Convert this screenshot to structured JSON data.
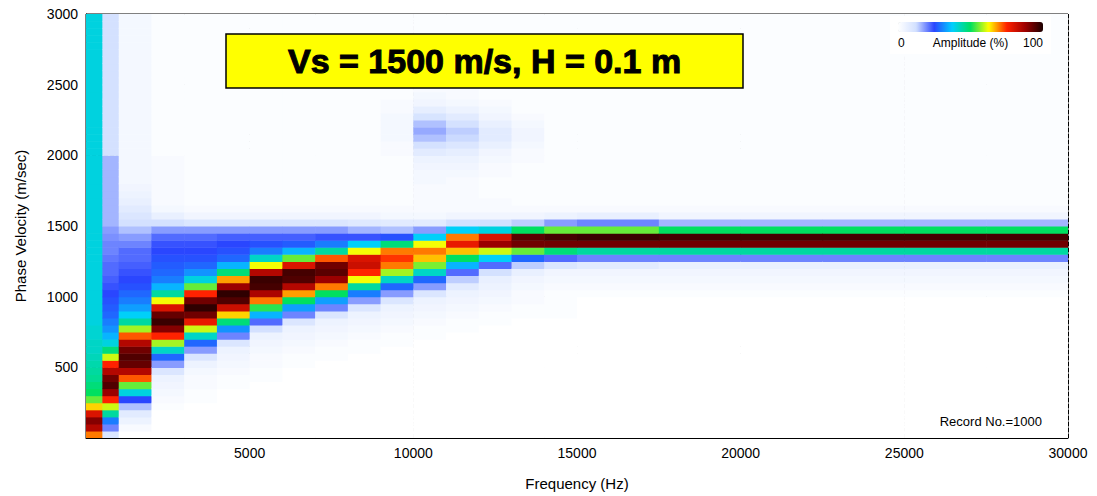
{
  "chart_data": {
    "type": "heatmap",
    "title": "Vs = 1500 m/s, H = 0.1 m",
    "x_label": "Frequency (Hz)",
    "y_label": "Phase Velocity (m/sec)",
    "xlim": [
      0,
      30000
    ],
    "ylim": [
      0,
      3000
    ],
    "xticks": [
      5000,
      10000,
      15000,
      20000,
      25000,
      30000
    ],
    "yticks": [
      500,
      1000,
      1500,
      2000,
      2500,
      3000
    ],
    "grid": true,
    "annotations": [
      "Record No.=1000"
    ],
    "colorbar": {
      "label": "Amplitude (%)",
      "range": [
        0,
        100
      ],
      "ticks": [
        0,
        100
      ]
    },
    "cells": {
      "x_bins": [
        0,
        500,
        1000,
        2000,
        3000,
        4000,
        5000,
        6000,
        7000,
        8000,
        9000,
        10000,
        11000,
        12000,
        13000,
        14000,
        15000,
        17500,
        20000,
        22500,
        25000,
        27500,
        30000
      ],
      "y_bins": [
        0,
        50,
        100,
        150,
        200,
        250,
        300,
        350,
        400,
        450,
        500,
        550,
        600,
        650,
        700,
        750,
        800,
        850,
        900,
        950,
        1000,
        1050,
        1100,
        1150,
        1200,
        1250,
        1300,
        1350,
        1400,
        1450,
        1500,
        1550,
        1600,
        1650,
        1700,
        1750,
        1800,
        1850,
        1900,
        1950,
        2000,
        2050,
        2100,
        2150,
        2200,
        2250,
        2300,
        2350,
        2400,
        2450,
        2500,
        2550,
        2600,
        2650,
        2700,
        2750,
        2800,
        2850,
        2900,
        2950,
        3000
      ],
      "values": [
        [
          70,
          85,
          90,
          80,
          65,
          55,
          50,
          48,
          46,
          45,
          44,
          43,
          42,
          42,
          41,
          41,
          40,
          40,
          40,
          40,
          40,
          40,
          40,
          40,
          40,
          40,
          40,
          40,
          40,
          40,
          40,
          40,
          40,
          40,
          40,
          40,
          40,
          40,
          40,
          40,
          40,
          40,
          40,
          40,
          40,
          40,
          40,
          40,
          40,
          40,
          40,
          40,
          40,
          40,
          40,
          40,
          40,
          40,
          40,
          40
        ],
        [
          10,
          20,
          30,
          45,
          60,
          75,
          88,
          95,
          92,
          85,
          75,
          60,
          48,
          40,
          35,
          32,
          30,
          28,
          27,
          26,
          25,
          24,
          23,
          22,
          22,
          21,
          20,
          20,
          19,
          18,
          16,
          16,
          16,
          16,
          16,
          16,
          16,
          16,
          16,
          16,
          12,
          12,
          12,
          12,
          12,
          12,
          12,
          12,
          12,
          12,
          12,
          12,
          12,
          12,
          12,
          12,
          12,
          12,
          12,
          12
        ],
        [
          0,
          2,
          5,
          8,
          15,
          25,
          40,
          55,
          72,
          85,
          93,
          95,
          92,
          85,
          72,
          58,
          45,
          38,
          33,
          30,
          28,
          26,
          25,
          24,
          23,
          22,
          22,
          20,
          18,
          15,
          12,
          10,
          8,
          6,
          5,
          4,
          3,
          3,
          3,
          3,
          3,
          3,
          3,
          3,
          3,
          3,
          3,
          3,
          3,
          3,
          3,
          3,
          3,
          3,
          3,
          3,
          3,
          3,
          3,
          3
        ],
        [
          0,
          0,
          0,
          0,
          1,
          2,
          3,
          4,
          5,
          10,
          18,
          28,
          42,
          58,
          75,
          90,
          97,
          93,
          80,
          62,
          45,
          35,
          30,
          28,
          27,
          26,
          25,
          24,
          22,
          18,
          12,
          6,
          3,
          2,
          2,
          2,
          2,
          2,
          2,
          2,
          1,
          1,
          1,
          1,
          1,
          1,
          1,
          1,
          1,
          1,
          1,
          1,
          1,
          1,
          1,
          1,
          1,
          1,
          1,
          1
        ],
        [
          0,
          0,
          0,
          0,
          0,
          1,
          1,
          2,
          2,
          3,
          5,
          10,
          18,
          28,
          42,
          60,
          78,
          92,
          98,
          92,
          75,
          55,
          40,
          32,
          28,
          26,
          25,
          24,
          22,
          18,
          10,
          4,
          2,
          1,
          1,
          1,
          1,
          1,
          1,
          1,
          1,
          1,
          1,
          1,
          1,
          1,
          1,
          1,
          1,
          1,
          1,
          1,
          1,
          1,
          1,
          1,
          1,
          1,
          1,
          1
        ],
        [
          0,
          0,
          0,
          0,
          0,
          0,
          0,
          1,
          1,
          2,
          3,
          4,
          5,
          10,
          20,
          32,
          48,
          65,
          82,
          95,
          98,
          88,
          68,
          48,
          35,
          28,
          26,
          25,
          23,
          18,
          10,
          4,
          2,
          1,
          1,
          1,
          1,
          1,
          1,
          1,
          1,
          1,
          1,
          1,
          1,
          1,
          1,
          1,
          1,
          1,
          1,
          1,
          1,
          1,
          1,
          1,
          1,
          1,
          1,
          1
        ],
        [
          0,
          0,
          0,
          0,
          0,
          0,
          0,
          0,
          1,
          1,
          2,
          2,
          3,
          4,
          5,
          12,
          22,
          35,
          52,
          70,
          86,
          96,
          97,
          85,
          62,
          42,
          30,
          26,
          23,
          18,
          10,
          4,
          2,
          1,
          1,
          1,
          1,
          1,
          1,
          1,
          1,
          1,
          1,
          1,
          1,
          1,
          1,
          1,
          1,
          1,
          1,
          1,
          1,
          1,
          1,
          1,
          1,
          1,
          1,
          1
        ],
        [
          0,
          0,
          0,
          0,
          0,
          0,
          0,
          0,
          0,
          0,
          1,
          1,
          2,
          3,
          4,
          5,
          10,
          20,
          33,
          50,
          68,
          85,
          95,
          96,
          80,
          55,
          35,
          27,
          23,
          18,
          10,
          4,
          2,
          1,
          1,
          1,
          1,
          1,
          1,
          1,
          1,
          1,
          1,
          1,
          1,
          1,
          1,
          1,
          1,
          1,
          1,
          1,
          1,
          1,
          1,
          1,
          1,
          1,
          1,
          1
        ],
        [
          0,
          0,
          0,
          0,
          0,
          0,
          0,
          0,
          0,
          0,
          0,
          1,
          1,
          2,
          3,
          4,
          5,
          10,
          20,
          33,
          50,
          70,
          88,
          94,
          92,
          72,
          45,
          30,
          24,
          18,
          10,
          4,
          2,
          1,
          1,
          1,
          1,
          1,
          1,
          1,
          1,
          1,
          1,
          1,
          1,
          1,
          1,
          1,
          1,
          1,
          1,
          1,
          1,
          1,
          1,
          1,
          1,
          1,
          1,
          1
        ],
        [
          0,
          0,
          0,
          0,
          0,
          0,
          0,
          0,
          0,
          0,
          0,
          0,
          1,
          1,
          2,
          3,
          4,
          5,
          10,
          18,
          30,
          45,
          62,
          75,
          82,
          80,
          62,
          38,
          24,
          16,
          9,
          4,
          2,
          1,
          1,
          1,
          1,
          1,
          1,
          1,
          1,
          1,
          1,
          1,
          1,
          1,
          1,
          1,
          1,
          1,
          1,
          1,
          1,
          1,
          1,
          1,
          1,
          1,
          1,
          1
        ],
        [
          0,
          0,
          0,
          0,
          0,
          0,
          0,
          0,
          0,
          0,
          0,
          0,
          0,
          1,
          1,
          2,
          3,
          4,
          5,
          10,
          18,
          28,
          42,
          58,
          70,
          74,
          70,
          48,
          26,
          15,
          8,
          3,
          2,
          1,
          1,
          1,
          1,
          1,
          1,
          1,
          2,
          2,
          3,
          3,
          3,
          3,
          2,
          2,
          1,
          1,
          1,
          1,
          1,
          1,
          1,
          1,
          1,
          1,
          1,
          1
        ],
        [
          0,
          0,
          0,
          0,
          0,
          0,
          0,
          0,
          0,
          0,
          0,
          0,
          0,
          0,
          1,
          1,
          2,
          3,
          4,
          5,
          10,
          18,
          28,
          42,
          56,
          66,
          70,
          62,
          38,
          18,
          8,
          3,
          2,
          2,
          2,
          2,
          3,
          3,
          4,
          5,
          8,
          12,
          15,
          17,
          15,
          11,
          7,
          4,
          3,
          2,
          2,
          1,
          1,
          1,
          1,
          1,
          1,
          1,
          1,
          1
        ],
        [
          0,
          0,
          0,
          0,
          0,
          0,
          0,
          0,
          0,
          0,
          0,
          0,
          0,
          0,
          0,
          1,
          1,
          2,
          3,
          4,
          5,
          8,
          14,
          22,
          35,
          50,
          66,
          78,
          70,
          38,
          12,
          4,
          2,
          2,
          2,
          2,
          2,
          3,
          4,
          5,
          7,
          10,
          13,
          14,
          12,
          8,
          5,
          3,
          2,
          2,
          1,
          1,
          1,
          1,
          1,
          1,
          1,
          1,
          1,
          1
        ],
        [
          0,
          0,
          0,
          0,
          0,
          0,
          0,
          0,
          0,
          0,
          0,
          0,
          0,
          0,
          0,
          0,
          1,
          1,
          2,
          3,
          4,
          5,
          6,
          12,
          22,
          38,
          60,
          88,
          80,
          40,
          12,
          4,
          2,
          2,
          1,
          1,
          1,
          2,
          2,
          3,
          4,
          6,
          8,
          8,
          6,
          4,
          3,
          2,
          1,
          1,
          1,
          1,
          1,
          1,
          1,
          1,
          1,
          1,
          1,
          1
        ],
        [
          0,
          0,
          0,
          0,
          0,
          0,
          0,
          0,
          0,
          0,
          0,
          0,
          0,
          0,
          0,
          0,
          0,
          1,
          1,
          2,
          2,
          3,
          4,
          6,
          14,
          28,
          55,
          92,
          94,
          50,
          14,
          4,
          2,
          1,
          1,
          1,
          1,
          1,
          1,
          2,
          2,
          3,
          4,
          4,
          3,
          2,
          1,
          1,
          1,
          1,
          1,
          1,
          1,
          1,
          1,
          1,
          1,
          1,
          1,
          1
        ],
        [
          0,
          0,
          0,
          0,
          0,
          0,
          0,
          0,
          0,
          0,
          0,
          0,
          0,
          0,
          0,
          0,
          0,
          1,
          1,
          1,
          1,
          2,
          3,
          4,
          10,
          22,
          48,
          92,
          96,
          55,
          18,
          5,
          2,
          1,
          1,
          1,
          1,
          1,
          1,
          1,
          1,
          1,
          1,
          1,
          1,
          1,
          1,
          1,
          1,
          1,
          1,
          1,
          1,
          1,
          1,
          1,
          1,
          1,
          1,
          1
        ],
        [
          0,
          0,
          0,
          0,
          0,
          0,
          0,
          0,
          0,
          0,
          0,
          0,
          0,
          0,
          0,
          0,
          0,
          0,
          0,
          0,
          1,
          2,
          3,
          4,
          8,
          20,
          45,
          92,
          97,
          55,
          20,
          6,
          2,
          1,
          1,
          1,
          1,
          1,
          1,
          1,
          1,
          1,
          1,
          1,
          1,
          1,
          1,
          1,
          1,
          1,
          1,
          1,
          1,
          1,
          1,
          1,
          1,
          1,
          1,
          1
        ],
        [
          0,
          0,
          0,
          0,
          0,
          0,
          0,
          0,
          0,
          0,
          0,
          0,
          0,
          0,
          0,
          0,
          0,
          0,
          0,
          0,
          1,
          2,
          3,
          4,
          6,
          20,
          45,
          92,
          96,
          50,
          16,
          4,
          2,
          1,
          1,
          1,
          1,
          1,
          1,
          1,
          1,
          1,
          1,
          1,
          1,
          1,
          1,
          1,
          1,
          1,
          1,
          1,
          1,
          1,
          1,
          1,
          1,
          1,
          1,
          1
        ],
        [
          0,
          0,
          0,
          0,
          0,
          0,
          0,
          0,
          0,
          0,
          0,
          0,
          0,
          0,
          0,
          0,
          0,
          0,
          0,
          0,
          1,
          2,
          3,
          4,
          6,
          20,
          45,
          92,
          96,
          50,
          16,
          4,
          2,
          1,
          1,
          1,
          1,
          1,
          1,
          1,
          1,
          1,
          1,
          1,
          1,
          1,
          1,
          1,
          1,
          1,
          1,
          1,
          1,
          1,
          1,
          1,
          1,
          1,
          1,
          1
        ],
        [
          0,
          0,
          0,
          0,
          0,
          0,
          0,
          0,
          0,
          0,
          0,
          0,
          0,
          0,
          0,
          0,
          0,
          0,
          0,
          0,
          1,
          2,
          3,
          4,
          6,
          20,
          45,
          92,
          96,
          50,
          16,
          4,
          2,
          1,
          1,
          1,
          1,
          1,
          1,
          1,
          1,
          1,
          1,
          1,
          1,
          1,
          1,
          1,
          1,
          1,
          1,
          1,
          1,
          1,
          1,
          1,
          1,
          1,
          1,
          1
        ],
        [
          0,
          0,
          0,
          0,
          0,
          0,
          0,
          0,
          0,
          0,
          0,
          0,
          0,
          0,
          0,
          0,
          0,
          0,
          0,
          0,
          1,
          2,
          3,
          4,
          6,
          20,
          45,
          92,
          96,
          50,
          16,
          4,
          2,
          1,
          1,
          1,
          1,
          1,
          1,
          1,
          1,
          1,
          1,
          1,
          1,
          1,
          1,
          1,
          1,
          1,
          1,
          1,
          1,
          1,
          1,
          1,
          1,
          1,
          1,
          1
        ],
        [
          0,
          0,
          0,
          0,
          0,
          0,
          0,
          0,
          0,
          0,
          0,
          0,
          0,
          0,
          0,
          0,
          0,
          0,
          0,
          0,
          1,
          2,
          3,
          4,
          6,
          20,
          45,
          92,
          96,
          50,
          16,
          4,
          2,
          1,
          1,
          1,
          1,
          1,
          1,
          1,
          1,
          1,
          1,
          1,
          1,
          1,
          1,
          1,
          1,
          1,
          1,
          1,
          1,
          1,
          1,
          1,
          1,
          1,
          1,
          1
        ]
      ]
    }
  }
}
